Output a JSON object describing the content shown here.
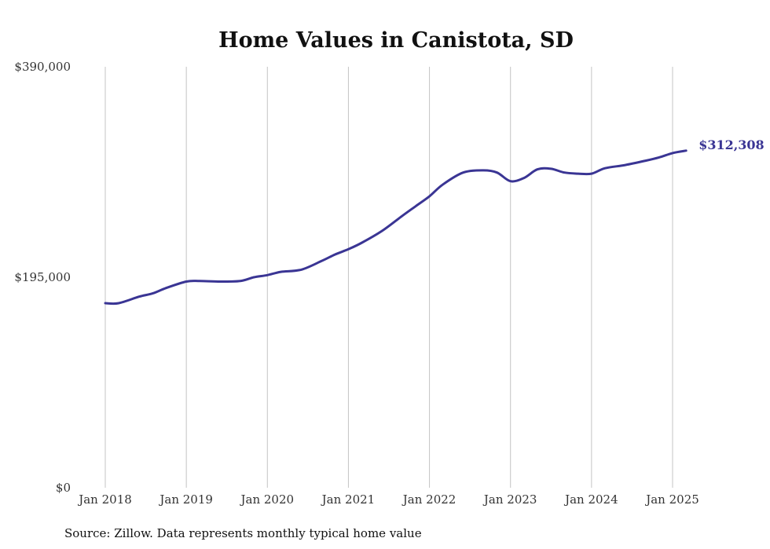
{
  "chart_data": {
    "type": "line",
    "title": "Home Values in Canistota, SD",
    "source": "Source: Zillow. Data represents monthly typical home value",
    "ylim": [
      0,
      390000
    ],
    "y_ticks": [
      {
        "value": 0,
        "label": "$0"
      },
      {
        "value": 195000,
        "label": "$195,000"
      },
      {
        "value": 390000,
        "label": "$390,000"
      }
    ],
    "x_ticks": [
      {
        "value": 2018,
        "label": "Jan 2018"
      },
      {
        "value": 2019,
        "label": "Jan 2019"
      },
      {
        "value": 2020,
        "label": "Jan 2020"
      },
      {
        "value": 2021,
        "label": "Jan 2021"
      },
      {
        "value": 2022,
        "label": "Jan 2022"
      },
      {
        "value": 2023,
        "label": "Jan 2023"
      },
      {
        "value": 2024,
        "label": "Jan 2024"
      },
      {
        "value": 2025,
        "label": "Jan 2025"
      }
    ],
    "xlim": [
      2018,
      2025.17
    ],
    "grid": "vertical",
    "series": [
      {
        "color": "#3a3594",
        "end_label": "$312,308",
        "x": [
          "2018-01",
          "2018-03",
          "2018-06",
          "2018-08",
          "2018-10",
          "2019-01",
          "2019-03",
          "2019-06",
          "2019-09",
          "2019-11",
          "2020-01",
          "2020-03",
          "2020-06",
          "2020-09",
          "2020-11",
          "2021-01",
          "2021-03",
          "2021-06",
          "2021-09",
          "2021-11",
          "2022-01",
          "2022-03",
          "2022-06",
          "2022-09",
          "2022-11",
          "2023-01",
          "2023-03",
          "2023-05",
          "2023-07",
          "2023-09",
          "2023-11",
          "2024-01",
          "2024-03",
          "2024-06",
          "2024-09",
          "2024-11",
          "2025-01",
          "2025-03"
        ],
        "values": [
          171000,
          171000,
          177000,
          180000,
          185000,
          191000,
          191500,
          191000,
          191500,
          195000,
          197000,
          200000,
          202000,
          210000,
          216000,
          221000,
          227000,
          238000,
          252000,
          261000,
          270000,
          281000,
          292000,
          294000,
          292000,
          284000,
          287000,
          295000,
          295500,
          292000,
          291000,
          291000,
          296000,
          299000,
          303000,
          306000,
          310000,
          312308
        ]
      }
    ]
  }
}
